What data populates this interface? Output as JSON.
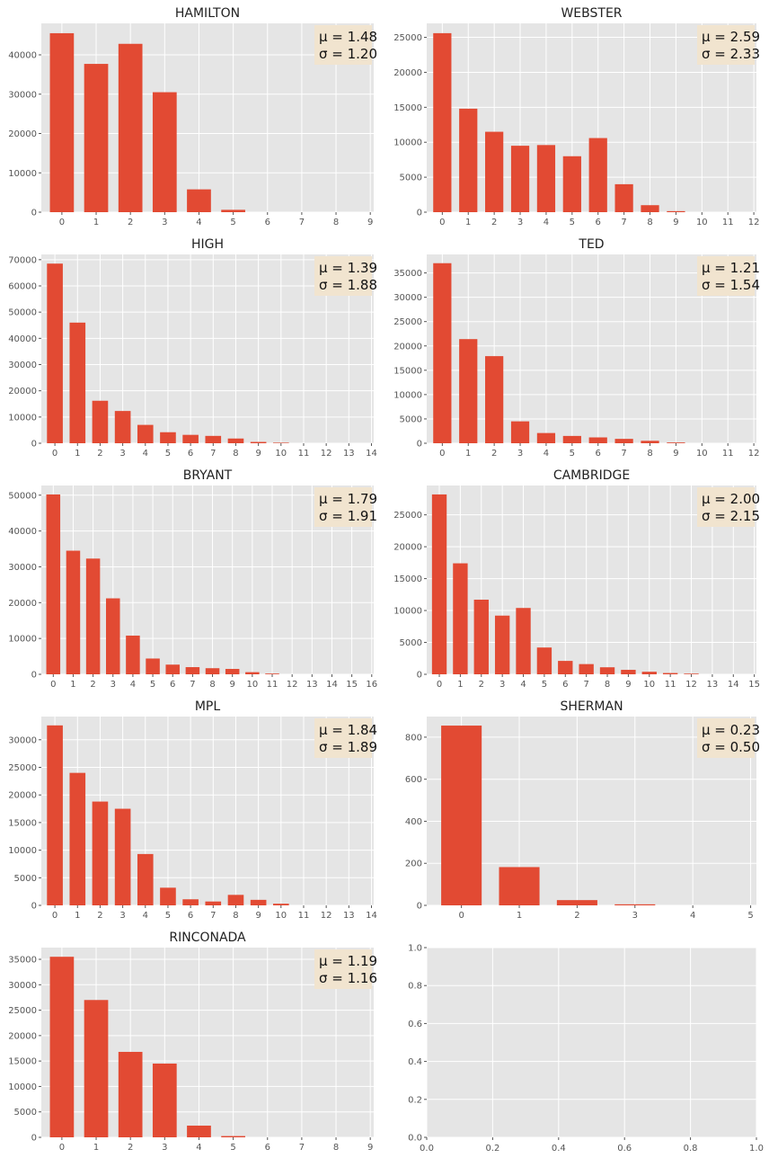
{
  "colors": {
    "bar": "#E24A33",
    "panel": "#E5E5E5",
    "grid": "#FFFFFF",
    "stat_box": "#F1E4CF",
    "text": "#222222"
  },
  "chart_data": [
    {
      "type": "bar",
      "title": "HAMILTON",
      "categories": [
        0,
        1,
        2,
        3,
        4,
        5,
        6,
        7,
        8,
        9
      ],
      "values": [
        45500,
        37700,
        42800,
        30500,
        5800,
        600,
        0,
        0,
        0,
        0
      ],
      "ylim": [
        0,
        48000
      ],
      "yticks": [
        0,
        10000,
        20000,
        30000,
        40000
      ],
      "xticks": [
        0,
        1,
        2,
        3,
        4,
        5,
        6,
        7,
        8,
        9
      ],
      "stats": [
        "μ = 1.48",
        "σ = 1.20"
      ],
      "grid": true
    },
    {
      "type": "bar",
      "title": "WEBSTER",
      "categories": [
        0,
        1,
        2,
        3,
        4,
        5,
        6,
        7,
        8,
        9,
        10,
        11,
        12
      ],
      "values": [
        25600,
        14800,
        11500,
        9500,
        9600,
        8000,
        10600,
        4000,
        1000,
        150,
        0,
        0,
        0
      ],
      "ylim": [
        0,
        27000
      ],
      "yticks": [
        0,
        5000,
        10000,
        15000,
        20000,
        25000
      ],
      "xticks": [
        0,
        1,
        2,
        3,
        4,
        5,
        6,
        7,
        8,
        9,
        10,
        11,
        12
      ],
      "stats": [
        "μ = 2.59",
        "σ = 2.33"
      ],
      "grid": true
    },
    {
      "type": "bar",
      "title": "HIGH",
      "categories": [
        0,
        1,
        2,
        3,
        4,
        5,
        6,
        7,
        8,
        9,
        10,
        11,
        12,
        13,
        14
      ],
      "values": [
        68500,
        46000,
        16200,
        12300,
        7000,
        4200,
        3200,
        2800,
        1800,
        500,
        200,
        0,
        0,
        0,
        0
      ],
      "ylim": [
        0,
        72000
      ],
      "yticks": [
        0,
        10000,
        20000,
        30000,
        40000,
        50000,
        60000,
        70000
      ],
      "xticks": [
        0,
        1,
        2,
        3,
        4,
        5,
        6,
        7,
        8,
        9,
        10,
        11,
        12,
        13,
        14
      ],
      "stats": [
        "μ = 1.39",
        "σ = 1.88"
      ],
      "grid": true
    },
    {
      "type": "bar",
      "title": "TED",
      "categories": [
        0,
        1,
        2,
        3,
        4,
        5,
        6,
        7,
        8,
        9,
        10,
        11,
        12
      ],
      "values": [
        37000,
        21400,
        17900,
        4500,
        2100,
        1500,
        1200,
        900,
        500,
        150,
        0,
        0,
        0
      ],
      "ylim": [
        0,
        38800
      ],
      "yticks": [
        0,
        5000,
        10000,
        15000,
        20000,
        25000,
        30000,
        35000
      ],
      "xticks": [
        0,
        1,
        2,
        3,
        4,
        5,
        6,
        7,
        8,
        9,
        10,
        11,
        12
      ],
      "stats": [
        "μ = 1.21",
        "σ = 1.54"
      ],
      "grid": true
    },
    {
      "type": "bar",
      "title": "BRYANT",
      "categories": [
        0,
        1,
        2,
        3,
        4,
        5,
        6,
        7,
        8,
        9,
        10,
        11,
        12,
        13,
        14,
        15,
        16
      ],
      "values": [
        50200,
        34500,
        32300,
        21200,
        10800,
        4400,
        2700,
        2000,
        1700,
        1500,
        600,
        200,
        0,
        0,
        0,
        0,
        0
      ],
      "ylim": [
        0,
        52700
      ],
      "yticks": [
        0,
        10000,
        20000,
        30000,
        40000,
        50000
      ],
      "xticks": [
        0,
        1,
        2,
        3,
        4,
        5,
        6,
        7,
        8,
        9,
        10,
        11,
        12,
        13,
        14,
        15,
        16
      ],
      "stats": [
        "μ = 1.79",
        "σ = 1.91"
      ],
      "grid": true
    },
    {
      "type": "bar",
      "title": "CAMBRIDGE",
      "categories": [
        0,
        1,
        2,
        3,
        4,
        5,
        6,
        7,
        8,
        9,
        10,
        11,
        12,
        13,
        14,
        15
      ],
      "values": [
        28200,
        17400,
        11700,
        9200,
        10400,
        4200,
        2100,
        1600,
        1100,
        700,
        400,
        200,
        100,
        0,
        0,
        0
      ],
      "ylim": [
        0,
        29600
      ],
      "yticks": [
        0,
        5000,
        10000,
        15000,
        20000,
        25000
      ],
      "xticks": [
        0,
        1,
        2,
        3,
        4,
        5,
        6,
        7,
        8,
        9,
        10,
        11,
        12,
        13,
        14,
        15
      ],
      "stats": [
        "μ = 2.00",
        "σ = 2.15"
      ],
      "grid": true
    },
    {
      "type": "bar",
      "title": "MPL",
      "categories": [
        0,
        1,
        2,
        3,
        4,
        5,
        6,
        7,
        8,
        9,
        10,
        11,
        12,
        13,
        14
      ],
      "values": [
        32600,
        24000,
        18800,
        17500,
        9300,
        3200,
        1100,
        700,
        1900,
        1000,
        300,
        0,
        0,
        0,
        0
      ],
      "ylim": [
        0,
        34200
      ],
      "yticks": [
        0,
        5000,
        10000,
        15000,
        20000,
        25000,
        30000
      ],
      "xticks": [
        0,
        1,
        2,
        3,
        4,
        5,
        6,
        7,
        8,
        9,
        10,
        11,
        12,
        13,
        14
      ],
      "stats": [
        "μ = 1.84",
        "σ = 1.89"
      ],
      "grid": true
    },
    {
      "type": "bar",
      "title": "SHERMAN",
      "categories": [
        0,
        1,
        2,
        3,
        4,
        5
      ],
      "values": [
        855,
        182,
        25,
        5,
        0,
        0
      ],
      "ylim": [
        0,
        898
      ],
      "yticks": [
        0,
        200,
        400,
        600,
        800
      ],
      "xticks": [
        0,
        1,
        2,
        3,
        4,
        5
      ],
      "stats": [
        "μ = 0.23",
        "σ = 0.50"
      ],
      "grid": true
    },
    {
      "type": "bar",
      "title": "RINCONADA",
      "categories": [
        0,
        1,
        2,
        3,
        4,
        5,
        6,
        7,
        8,
        9
      ],
      "values": [
        35500,
        27000,
        16800,
        14500,
        2300,
        250,
        0,
        0,
        0,
        0
      ],
      "ylim": [
        0,
        37300
      ],
      "yticks": [
        0,
        5000,
        10000,
        15000,
        20000,
        25000,
        30000,
        35000
      ],
      "xticks": [
        0,
        1,
        2,
        3,
        4,
        5,
        6,
        7,
        8,
        9
      ],
      "stats": [
        "μ = 1.19",
        "σ = 1.16"
      ],
      "grid": true
    },
    {
      "type": "empty",
      "title": "",
      "xlim": [
        0,
        1
      ],
      "ylim": [
        0,
        1
      ],
      "xtick_labels": [
        "0.0",
        "0.2",
        "0.4",
        "0.6",
        "0.8",
        "1.0"
      ],
      "ytick_labels": [
        "0.0",
        "0.2",
        "0.4",
        "0.6",
        "0.8",
        "1.0"
      ],
      "grid": true
    }
  ]
}
